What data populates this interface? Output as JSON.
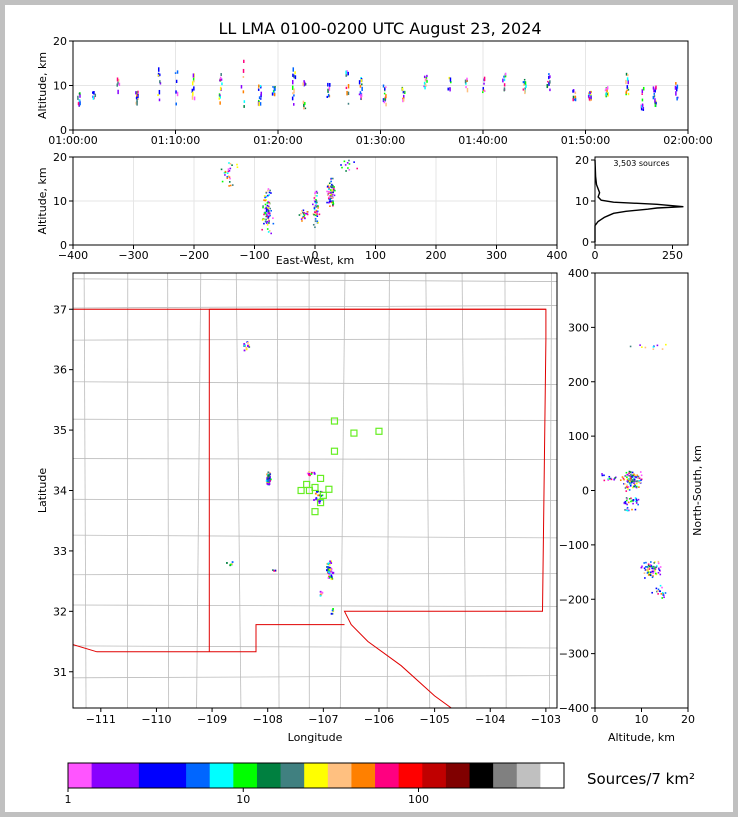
{
  "title": "LL LMA 0100-0200 UTC August 23, 2024",
  "source_count": "3,503 sources",
  "colorbar_label": "Sources/7 km²",
  "colors": {
    "outer_border": "#c0c0c0",
    "state_lines": "#e00000",
    "county_lines": "#bcbcbc",
    "grid": "#e6e6e6",
    "stations": "#66ee22"
  },
  "colorbar": {
    "colors": [
      "#ff55ff",
      "#8800ff",
      "#8800ff",
      "#0000ff",
      "#0000ff",
      "#0066ff",
      "#00ffff",
      "#00ff00",
      "#008040",
      "#408080",
      "#ffff00",
      "#ffc080",
      "#ff8000",
      "#ff0080",
      "#ff0000",
      "#c00000",
      "#800000",
      "#000000",
      "#808080",
      "#c0c0c0",
      "#ffffff"
    ],
    "ticks": [
      {
        "value": 1,
        "label": "1"
      },
      {
        "value": 10,
        "label": "10"
      },
      {
        "value": 100,
        "label": "100"
      }
    ]
  },
  "chart_data": [
    {
      "type": "scatter",
      "name": "time-height",
      "xlabel": "",
      "ylabel": "Altitude, km",
      "xlim": [
        "01:00:00",
        "02:00:00"
      ],
      "ylim": [
        0,
        20
      ],
      "xticks": [
        "01:00:00",
        "01:10:00",
        "01:20:00",
        "01:30:00",
        "01:40:00",
        "01:50:00",
        "02:00:00"
      ],
      "yticks": [
        0,
        10,
        20
      ],
      "grid": true,
      "activity_columns": [
        {
          "t": "01:00:30",
          "alt": [
            5,
            9
          ]
        },
        {
          "t": "01:02:00",
          "alt": [
            6,
            10
          ]
        },
        {
          "t": "01:04:20",
          "alt": [
            7,
            14
          ]
        },
        {
          "t": "01:06:10",
          "alt": [
            6,
            10
          ]
        },
        {
          "t": "01:08:20",
          "alt": [
            7,
            15
          ]
        },
        {
          "t": "01:10:00",
          "alt": [
            5,
            14
          ]
        },
        {
          "t": "01:11:40",
          "alt": [
            7,
            13
          ]
        },
        {
          "t": "01:14:20",
          "alt": [
            6,
            13
          ]
        },
        {
          "t": "01:16:30",
          "alt": [
            5,
            16
          ]
        },
        {
          "t": "01:18:10",
          "alt": [
            6,
            11
          ]
        },
        {
          "t": "01:19:30",
          "alt": [
            7,
            10
          ]
        },
        {
          "t": "01:21:30",
          "alt": [
            6,
            15
          ]
        },
        {
          "t": "01:22:30",
          "alt": [
            5,
            12
          ]
        },
        {
          "t": "01:24:50",
          "alt": [
            7,
            11
          ]
        },
        {
          "t": "01:26:40",
          "alt": [
            6,
            15
          ]
        },
        {
          "t": "01:28:00",
          "alt": [
            7,
            12
          ]
        },
        {
          "t": "01:30:20",
          "alt": [
            6,
            11
          ]
        },
        {
          "t": "01:32:10",
          "alt": [
            7,
            10
          ]
        },
        {
          "t": "01:34:20",
          "alt": [
            10,
            13
          ]
        },
        {
          "t": "01:36:40",
          "alt": [
            9,
            12
          ]
        },
        {
          "t": "01:38:20",
          "alt": [
            9,
            12
          ]
        },
        {
          "t": "01:40:00",
          "alt": [
            8,
            12
          ]
        },
        {
          "t": "01:42:00",
          "alt": [
            9,
            13
          ]
        },
        {
          "t": "01:44:00",
          "alt": [
            9,
            12
          ]
        },
        {
          "t": "01:46:20",
          "alt": [
            9,
            13
          ]
        },
        {
          "t": "01:48:50",
          "alt": [
            7,
            10
          ]
        },
        {
          "t": "01:50:20",
          "alt": [
            7,
            9
          ]
        },
        {
          "t": "01:52:00",
          "alt": [
            8,
            10
          ]
        },
        {
          "t": "01:54:00",
          "alt": [
            8,
            13
          ]
        },
        {
          "t": "01:55:30",
          "alt": [
            5,
            10
          ]
        },
        {
          "t": "01:56:40",
          "alt": [
            6,
            10
          ]
        },
        {
          "t": "01:58:50",
          "alt": [
            7,
            11
          ]
        }
      ]
    },
    {
      "type": "scatter",
      "name": "east-west-altitude",
      "xlabel": "East-West, km",
      "ylabel": "Altitude, km",
      "xlim": [
        -400,
        400
      ],
      "ylim": [
        0,
        20
      ],
      "xticks": [
        -400,
        -300,
        -200,
        -100,
        0,
        100,
        200,
        300,
        400
      ],
      "yticks": [
        0,
        10,
        20
      ],
      "grid": true,
      "clusters": [
        {
          "x": -80,
          "alt": 8,
          "sx": 6,
          "sy": 3.5,
          "n": 90
        },
        {
          "x": -140,
          "alt": 16,
          "sx": 10,
          "sy": 2,
          "n": 25
        },
        {
          "x": -20,
          "alt": 7,
          "sx": 6,
          "sy": 1,
          "n": 20
        },
        {
          "x": 0,
          "alt": 8,
          "sx": 4,
          "sy": 3,
          "n": 50
        },
        {
          "x": 25,
          "alt": 12,
          "sx": 5,
          "sy": 2.5,
          "n": 80
        },
        {
          "x": 55,
          "alt": 18,
          "sx": 10,
          "sy": 1,
          "n": 12
        }
      ]
    },
    {
      "type": "line",
      "name": "altitude-histogram",
      "xlabel": "",
      "ylabel": "",
      "xlim": [
        0,
        300
      ],
      "ylim": [
        0,
        20
      ],
      "xticks": [
        0,
        250
      ],
      "yticks": [
        0,
        10,
        20
      ],
      "x": [
        0,
        0,
        10,
        20,
        30,
        45,
        60,
        100,
        170,
        200,
        285,
        200,
        60,
        20,
        10,
        15,
        10,
        5,
        2,
        0
      ],
      "y": [
        0,
        4,
        5,
        5.5,
        6,
        6.5,
        7,
        7.5,
        8,
        8.3,
        8.6,
        9.2,
        9.7,
        10.2,
        11,
        12,
        13,
        14,
        16,
        20
      ]
    },
    {
      "type": "scatter",
      "name": "plan-view",
      "xlabel": "Longitude",
      "ylabel": "Latitude",
      "xlim": [
        -111.5,
        -102.8
      ],
      "ylim": [
        30.4,
        37.6
      ],
      "xticks": [
        -111,
        -110,
        -109,
        -108,
        -107,
        -106,
        -105,
        -104,
        -103
      ],
      "yticks": [
        31,
        32,
        33,
        34,
        35,
        36,
        37
      ],
      "clusters": [
        {
          "lon": -108.4,
          "lat": 36.4,
          "slon": 0.04,
          "slat": 0.06,
          "n": 14
        },
        {
          "lon": -108.0,
          "lat": 34.2,
          "slon": 0.03,
          "slat": 0.08,
          "n": 60
        },
        {
          "lon": -107.25,
          "lat": 34.3,
          "slon": 0.05,
          "slat": 0.02,
          "n": 10
        },
        {
          "lon": -107.1,
          "lat": 33.9,
          "slon": 0.06,
          "slat": 0.08,
          "n": 20
        },
        {
          "lon": -106.9,
          "lat": 32.7,
          "slon": 0.04,
          "slat": 0.12,
          "n": 55
        },
        {
          "lon": -107.05,
          "lat": 32.3,
          "slon": 0.02,
          "slat": 0.04,
          "n": 8
        },
        {
          "lon": -108.7,
          "lat": 32.8,
          "slon": 0.05,
          "slat": 0.03,
          "n": 6
        },
        {
          "lon": -107.9,
          "lat": 32.7,
          "slon": 0.03,
          "slat": 0.02,
          "n": 4
        },
        {
          "lon": -106.85,
          "lat": 32.0,
          "slon": 0.03,
          "slat": 0.05,
          "n": 5
        }
      ],
      "stations": [
        {
          "lon": -106.8,
          "lat": 35.15
        },
        {
          "lon": -106.45,
          "lat": 34.95
        },
        {
          "lon": -106.0,
          "lat": 34.98
        },
        {
          "lon": -106.8,
          "lat": 34.65
        },
        {
          "lon": -107.05,
          "lat": 34.2
        },
        {
          "lon": -107.3,
          "lat": 34.1
        },
        {
          "lon": -107.15,
          "lat": 34.05
        },
        {
          "lon": -107.4,
          "lat": 34.0
        },
        {
          "lon": -107.25,
          "lat": 34.0
        },
        {
          "lon": -106.9,
          "lat": 34.02
        },
        {
          "lon": -107.0,
          "lat": 33.92
        },
        {
          "lon": -107.05,
          "lat": 33.8
        },
        {
          "lon": -107.15,
          "lat": 33.65
        }
      ]
    },
    {
      "type": "scatter",
      "name": "altitude-north-south",
      "xlabel": "Altitude, km",
      "ylabel": "North-South, km",
      "xlim": [
        0,
        20
      ],
      "ylim": [
        -400,
        400
      ],
      "xticks": [
        0,
        10,
        20
      ],
      "yticks": [
        -400,
        -300,
        -200,
        -100,
        0,
        100,
        200,
        300,
        400
      ],
      "clusters": [
        {
          "alt": 8,
          "y": 20,
          "sx": 1.5,
          "sy": 12,
          "n": 110
        },
        {
          "alt": 3,
          "y": 25,
          "sx": 2,
          "sy": 6,
          "n": 15
        },
        {
          "alt": 8,
          "y": -18,
          "sx": 1.5,
          "sy": 5,
          "n": 25
        },
        {
          "alt": 7,
          "y": -35,
          "sx": 1.5,
          "sy": 3,
          "n": 8
        },
        {
          "alt": 12,
          "y": -145,
          "sx": 1.5,
          "sy": 10,
          "n": 70
        },
        {
          "alt": 14,
          "y": -185,
          "sx": 1.5,
          "sy": 8,
          "n": 18
        },
        {
          "alt": 12,
          "y": 265,
          "sx": 3,
          "sy": 4,
          "n": 10
        }
      ]
    }
  ]
}
